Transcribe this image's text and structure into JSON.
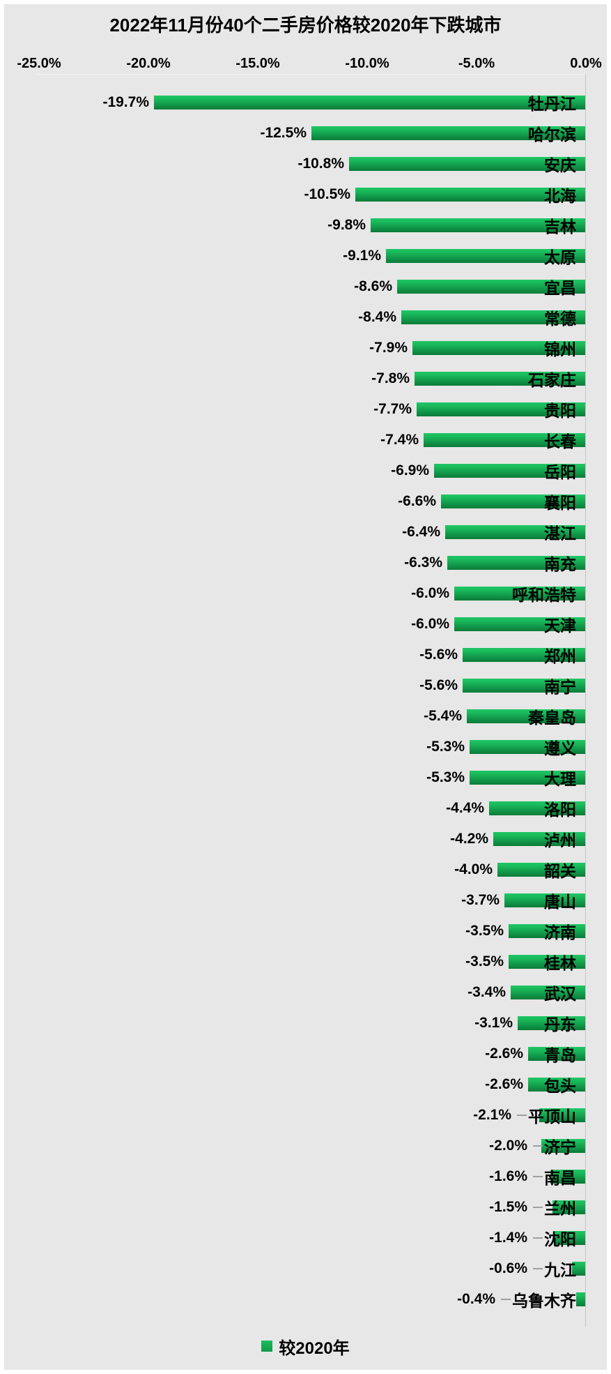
{
  "title": "2022年11月份40个二手房价格较2020年下跌城市",
  "axis": {
    "ticks": [
      "-25.0%",
      "-20.0%",
      "-15.0%",
      "-10.0%",
      "-5.0%",
      "0.0%"
    ]
  },
  "legend": {
    "label": "较2020年",
    "swatch_color": "#14a050"
  },
  "colors": {
    "background": "#e7e7e7",
    "bar_top": "#20c566",
    "bar_bottom": "#0b7b38",
    "axis_line": "#c5c5c5",
    "text": "#000000",
    "leader_line": "#a0a0a0"
  },
  "chart_data": {
    "type": "bar",
    "orientation": "horizontal",
    "title": "2022年11月份40个二手房价格较2020年下跌城市",
    "series_name": "较2020年",
    "xlabel": "",
    "ylabel": "",
    "xlim": [
      -25,
      0
    ],
    "x_ticks": [
      -25,
      -20,
      -15,
      -10,
      -5,
      0
    ],
    "grid": false,
    "legend_position": "bottom",
    "categories": [
      "牡丹江",
      "哈尔滨",
      "安庆",
      "北海",
      "吉林",
      "太原",
      "宜昌",
      "常德",
      "锦州",
      "石家庄",
      "贵阳",
      "长春",
      "岳阳",
      "襄阳",
      "湛江",
      "南充",
      "呼和浩特",
      "天津",
      "郑州",
      "南宁",
      "秦皇岛",
      "遵义",
      "大理",
      "洛阳",
      "泸州",
      "韶关",
      "唐山",
      "济南",
      "桂林",
      "武汉",
      "丹东",
      "青岛",
      "包头",
      "平顶山",
      "济宁",
      "南昌",
      "兰州",
      "沈阳",
      "九江",
      "乌鲁木齐"
    ],
    "values": [
      -19.7,
      -12.5,
      -10.8,
      -10.5,
      -9.8,
      -9.1,
      -8.6,
      -8.4,
      -7.9,
      -7.8,
      -7.7,
      -7.4,
      -6.9,
      -6.6,
      -6.4,
      -6.3,
      -6.0,
      -6.0,
      -5.6,
      -5.6,
      -5.4,
      -5.3,
      -5.3,
      -4.4,
      -4.2,
      -4.0,
      -3.7,
      -3.5,
      -3.5,
      -3.4,
      -3.1,
      -2.6,
      -2.6,
      -2.1,
      -2.0,
      -1.6,
      -1.5,
      -1.4,
      -0.6,
      -0.4
    ],
    "value_labels": [
      "-19.7%",
      "-12.5%",
      "-10.8%",
      "-10.5%",
      "-9.8%",
      "-9.1%",
      "-8.6%",
      "-8.4%",
      "-7.9%",
      "-7.8%",
      "-7.7%",
      "-7.4%",
      "-6.9%",
      "-6.6%",
      "-6.4%",
      "-6.3%",
      "-6.0%",
      "-6.0%",
      "-5.6%",
      "-5.6%",
      "-5.4%",
      "-5.3%",
      "-5.3%",
      "-4.4%",
      "-4.2%",
      "-4.0%",
      "-3.7%",
      "-3.5%",
      "-3.5%",
      "-3.4%",
      "-3.1%",
      "-2.6%",
      "-2.6%",
      "-2.1%",
      "-2.0%",
      "-1.6%",
      "-1.5%",
      "-1.4%",
      "-0.6%",
      "-0.4%"
    ],
    "leader_lines": [
      false,
      false,
      false,
      false,
      false,
      false,
      false,
      false,
      false,
      false,
      false,
      false,
      false,
      false,
      false,
      false,
      false,
      false,
      false,
      false,
      false,
      false,
      false,
      false,
      false,
      false,
      false,
      false,
      false,
      false,
      false,
      false,
      false,
      true,
      true,
      true,
      true,
      true,
      true,
      true
    ]
  }
}
